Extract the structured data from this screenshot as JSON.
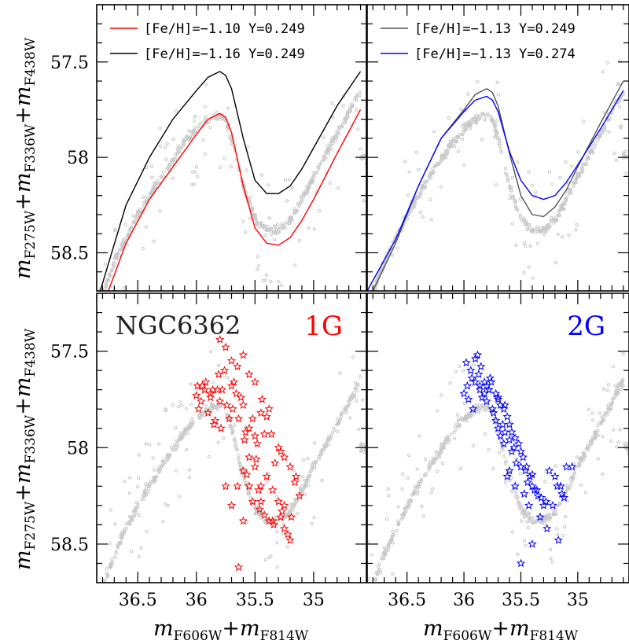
{
  "figure": {
    "cluster_name": "NGC6362",
    "x_axis_label": {
      "m": "m",
      "sub1": "F606W",
      "plus": "+",
      "m2": "m",
      "sub2": "F814W"
    },
    "y_axis_label": {
      "m": "m",
      "sub1": "F275W",
      "plus": "+",
      "m2": "m",
      "sub2": "F336W",
      "plus2": "+",
      "m3": "m",
      "sub3": "F438W"
    },
    "x_tick_labels": [
      "36.5",
      "36",
      "35.5",
      "35"
    ],
    "y_tick_labels": [
      "57.5",
      "58",
      "58.5"
    ]
  },
  "chart_data": [
    {
      "type": "line",
      "panel": "top-left",
      "xlim": [
        36.85,
        34.55
      ],
      "ylim": [
        58.7,
        57.2
      ],
      "grid": false,
      "legend_position": "top-left",
      "series": [
        {
          "name": "[Fe/H]=−1.10 Y=0.249",
          "color": "#ff0000",
          "x": [
            36.75,
            36.6,
            36.4,
            36.2,
            36.0,
            35.9,
            35.8,
            35.75,
            35.7,
            35.6,
            35.5,
            35.4,
            35.3,
            35.2,
            35.1,
            35.0,
            34.8,
            34.6
          ],
          "y": [
            58.7,
            58.45,
            58.22,
            58.05,
            57.88,
            57.8,
            57.77,
            57.79,
            57.87,
            58.15,
            58.37,
            58.45,
            58.46,
            58.42,
            58.33,
            58.22,
            57.98,
            57.75
          ]
        },
        {
          "name": "[Fe/H]=−1.16 Y=0.249",
          "color": "#000000",
          "x": [
            36.82,
            36.6,
            36.4,
            36.2,
            36.0,
            35.9,
            35.8,
            35.75,
            35.7,
            35.6,
            35.5,
            35.4,
            35.3,
            35.2,
            35.1,
            35.0,
            34.8,
            34.6
          ],
          "y": [
            58.7,
            58.25,
            58.0,
            57.8,
            57.65,
            57.58,
            57.55,
            57.57,
            57.64,
            57.9,
            58.12,
            58.19,
            58.19,
            58.15,
            58.06,
            57.95,
            57.73,
            57.55
          ]
        }
      ]
    },
    {
      "type": "line",
      "panel": "top-right",
      "xlim": [
        36.85,
        34.55
      ],
      "ylim": [
        58.7,
        57.2
      ],
      "grid": false,
      "legend_position": "top-left",
      "series": [
        {
          "name": "[Fe/H]=−1.13 Y=0.249",
          "color": "#555555",
          "x": [
            36.8,
            36.6,
            36.4,
            36.2,
            36.0,
            35.9,
            35.8,
            35.75,
            35.7,
            35.6,
            35.5,
            35.4,
            35.3,
            35.2,
            35.1,
            35.0,
            34.8,
            34.6
          ],
          "y": [
            58.7,
            58.45,
            58.15,
            57.9,
            57.75,
            57.67,
            57.64,
            57.66,
            57.73,
            57.98,
            58.2,
            58.3,
            58.31,
            58.26,
            58.17,
            58.05,
            57.82,
            57.6
          ]
        },
        {
          "name": "[Fe/H]=−1.13 Y=0.274",
          "color": "#0000ff",
          "x": [
            36.85,
            36.6,
            36.4,
            36.2,
            36.0,
            35.9,
            35.8,
            35.75,
            35.7,
            35.6,
            35.5,
            35.4,
            35.3,
            35.2,
            35.1,
            35.0,
            34.8,
            34.6
          ],
          "y": [
            58.7,
            58.43,
            58.15,
            57.9,
            57.76,
            57.7,
            57.68,
            57.7,
            57.76,
            57.97,
            58.12,
            58.2,
            58.22,
            58.2,
            58.13,
            58.04,
            57.85,
            57.65
          ]
        }
      ]
    },
    {
      "type": "scatter",
      "panel": "bottom-left",
      "population_label": "1G",
      "label_color": "#ff0000",
      "xlim": [
        36.85,
        34.55
      ],
      "ylim": [
        58.7,
        57.2
      ],
      "grid": false,
      "series": [
        {
          "name": "1G",
          "color": "#ff0000",
          "marker": "star",
          "x": [
            35.92,
            35.88,
            35.98,
            35.81,
            35.76,
            35.7,
            35.66,
            35.9,
            35.85,
            35.8,
            35.72,
            35.62,
            35.6,
            35.55,
            35.5,
            35.45,
            35.42,
            35.95,
            35.86,
            35.78,
            35.74,
            35.68,
            35.64,
            35.58,
            35.52,
            35.48,
            35.4,
            35.36,
            35.8,
            35.75,
            35.7,
            35.65,
            35.6,
            35.55,
            35.5,
            35.44,
            35.38,
            35.3,
            35.28,
            35.25,
            35.2,
            35.16,
            35.12,
            35.3,
            35.35,
            35.4,
            35.45,
            35.5,
            35.55,
            35.6,
            35.65,
            35.52,
            35.46,
            35.42,
            35.38,
            35.34,
            35.28,
            35.25,
            35.22,
            35.2,
            35.6,
            35.7,
            35.75,
            35.55,
            35.45,
            35.35,
            35.25,
            35.15,
            35.82,
            35.88,
            35.93,
            35.99,
            36.0,
            35.96,
            35.84,
            35.79,
            35.69,
            35.59,
            35.49,
            35.33,
            35.27,
            35.19,
            35.64,
            35.57,
            35.47
          ],
          "y": [
            57.66,
            57.72,
            57.8,
            57.62,
            57.6,
            57.68,
            57.72,
            57.82,
            57.88,
            57.76,
            57.85,
            57.74,
            57.78,
            57.9,
            57.94,
            57.82,
            57.93,
            57.68,
            57.7,
            57.7,
            57.78,
            57.66,
            57.85,
            57.92,
            57.85,
            57.98,
            57.84,
            57.93,
            57.44,
            57.48,
            57.55,
            57.58,
            57.52,
            57.62,
            57.66,
            57.75,
            57.8,
            58.0,
            58.02,
            58.05,
            58.1,
            58.18,
            58.25,
            58.28,
            58.22,
            58.15,
            58.2,
            58.1,
            58.05,
            58.12,
            58.2,
            58.28,
            58.32,
            58.35,
            58.38,
            58.4,
            58.36,
            58.42,
            58.45,
            58.48,
            58.38,
            58.3,
            58.2,
            58.2,
            58.28,
            58.38,
            58.3,
            58.15,
            57.7,
            57.74,
            57.7,
            57.68,
            57.73,
            57.76,
            57.86,
            57.9,
            57.8,
            57.96,
            58.06,
            58.08,
            58.33,
            58.36,
            58.62,
            58.14,
            58.22
          ]
        }
      ]
    },
    {
      "type": "scatter",
      "panel": "bottom-right",
      "population_label": "2G",
      "label_color": "#0000ff",
      "xlim": [
        36.85,
        34.55
      ],
      "ylim": [
        58.7,
        57.2
      ],
      "grid": false,
      "series": [
        {
          "name": "2G",
          "color": "#0000ff",
          "marker": "star",
          "x": [
            35.98,
            35.94,
            35.9,
            35.88,
            35.85,
            35.82,
            35.8,
            35.78,
            35.76,
            35.72,
            35.7,
            35.68,
            35.65,
            35.62,
            35.6,
            35.58,
            35.55,
            35.52,
            35.5,
            35.48,
            35.45,
            35.42,
            35.4,
            35.38,
            35.35,
            35.3,
            35.25,
            35.2,
            35.15,
            35.1,
            35.05,
            36.0,
            35.96,
            35.92,
            35.86,
            35.84,
            35.8,
            35.74,
            35.66,
            35.64,
            35.6,
            35.56,
            35.54,
            35.46,
            35.44,
            35.4,
            35.36,
            35.32,
            35.28,
            35.22,
            35.18,
            35.14,
            35.12,
            35.9,
            35.86,
            35.82,
            35.78,
            35.75,
            35.72,
            35.7,
            35.68,
            35.65,
            35.58,
            35.5,
            35.6,
            35.62,
            35.55,
            35.47,
            35.43,
            35.33,
            35.27,
            35.17,
            35.87,
            35.93,
            35.97,
            35.77,
            35.7,
            35.64,
            35.5,
            35.4
          ],
          "y": [
            57.56,
            57.6,
            57.54,
            57.52,
            57.58,
            57.66,
            57.68,
            57.7,
            57.66,
            57.72,
            57.75,
            57.78,
            57.8,
            57.84,
            57.88,
            57.92,
            57.95,
            57.98,
            58.02,
            58.05,
            58.1,
            58.15,
            58.2,
            58.22,
            58.25,
            58.3,
            58.12,
            58.15,
            58.2,
            58.1,
            58.1,
            57.72,
            57.75,
            57.8,
            57.7,
            57.74,
            57.76,
            57.82,
            57.88,
            57.92,
            57.96,
            58.0,
            58.08,
            58.12,
            58.18,
            58.14,
            58.22,
            58.26,
            58.28,
            58.3,
            58.2,
            58.24,
            58.26,
            57.66,
            57.68,
            57.72,
            57.7,
            57.8,
            57.86,
            57.9,
            57.94,
            57.98,
            58.02,
            58.1,
            58.12,
            58.15,
            58.2,
            58.24,
            58.3,
            58.36,
            58.42,
            58.48,
            57.62,
            57.64,
            57.68,
            57.64,
            57.74,
            57.78,
            58.6,
            58.5
          ]
        }
      ]
    }
  ]
}
